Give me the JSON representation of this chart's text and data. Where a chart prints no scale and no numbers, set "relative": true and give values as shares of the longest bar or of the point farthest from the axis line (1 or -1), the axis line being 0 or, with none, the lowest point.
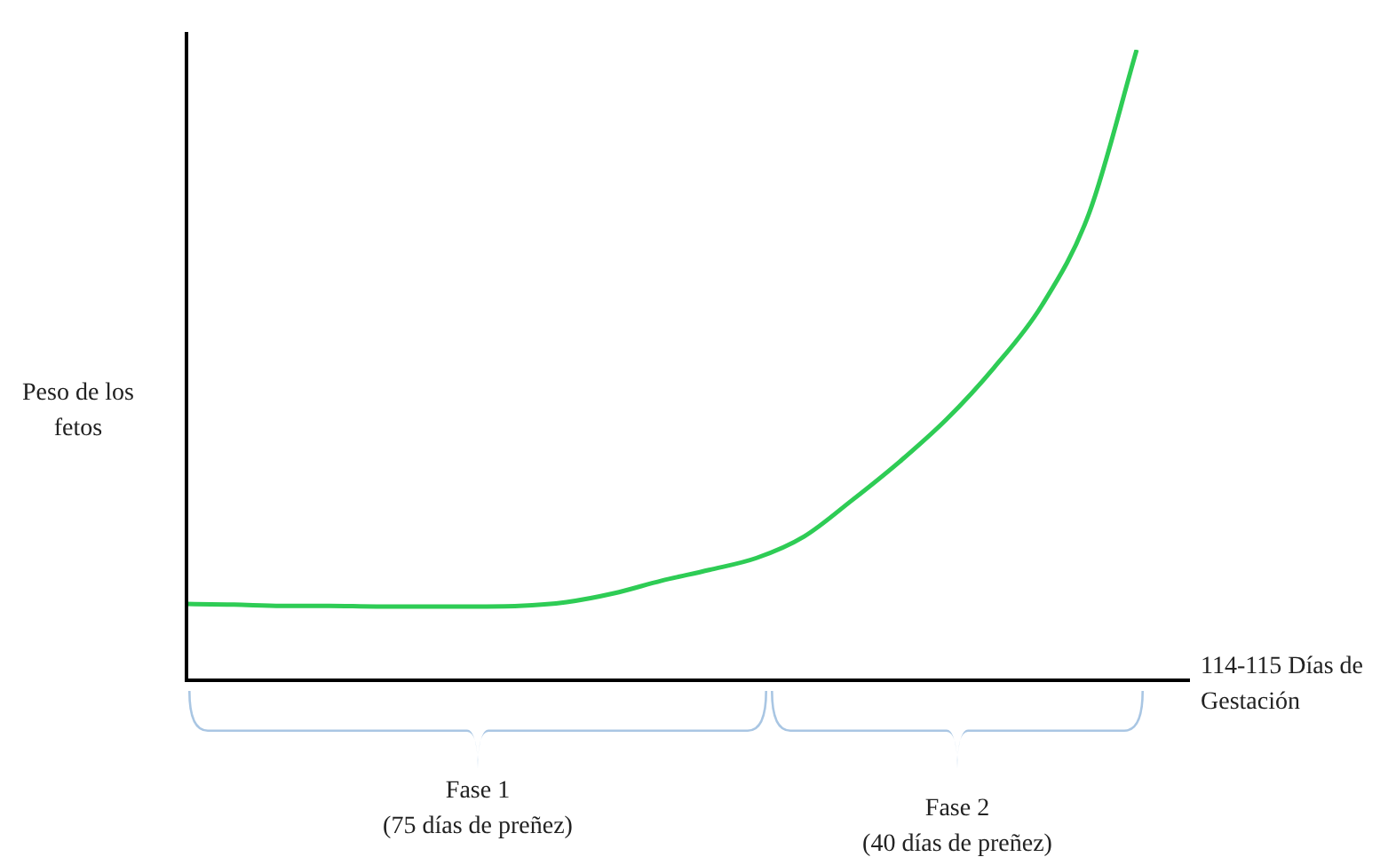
{
  "chart_data": {
    "type": "line",
    "relative": true,
    "ylabel": "Peso de los fetos",
    "xlabel": "114-115 Días de Gestación",
    "categories": [
      null,
      null,
      null,
      null,
      null,
      null,
      null,
      null,
      null,
      null,
      null,
      null,
      null,
      null,
      null,
      null,
      null,
      null,
      null,
      null,
      null
    ],
    "series": [
      {
        "color": "#2ecc55",
        "values": [
          0.121,
          0.12,
          0.118,
          0.118,
          0.117,
          0.117,
          0.117,
          0.118,
          0.124,
          0.138,
          0.158,
          0.175,
          0.194,
          0.228,
          0.285,
          0.346,
          0.414,
          0.496,
          0.594,
          0.741,
          1.0
        ]
      }
    ],
    "marker": "none",
    "legend": false,
    "annotations": [
      "Fase 1\n(75 días de preñez)",
      "Fase 2\n(40 días de preñez)"
    ]
  }
}
